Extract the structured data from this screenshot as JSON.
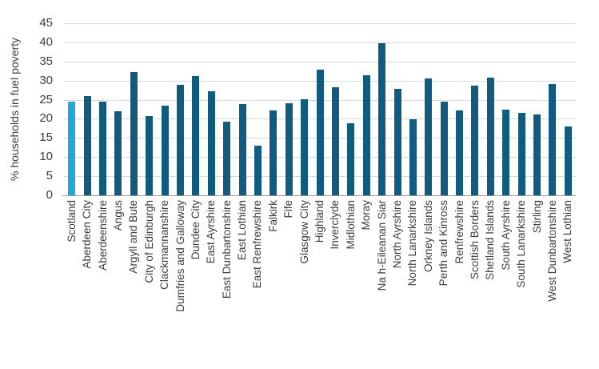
{
  "chart_data": {
    "type": "bar",
    "title": "",
    "ylabel": "% households in fuel poverty",
    "xlabel": "",
    "ylim": [
      0,
      45
    ],
    "yticks": [
      0,
      5,
      10,
      15,
      20,
      25,
      30,
      35,
      40,
      45
    ],
    "grid": true,
    "legend_position": "none",
    "categories": [
      "Scotland",
      "Aberdeen City",
      "Aberdeenshire",
      "Angus",
      "Argyll and Bute",
      "City of Edinburgh",
      "Clackmannanshire",
      "Dumfries and Galloway",
      "Dundee City",
      "East Ayrshire",
      "East Dunbartonshire",
      "East Lothian",
      "East Renfrewshire",
      "Falkirk",
      "Fife",
      "Glasgow City",
      "Highland",
      "Inverclyde",
      "Midlothian",
      "Moray",
      "Na h-Eileanan Siar",
      "North Ayrshire",
      "North Lanarkshire",
      "Orkney Islands",
      "Perth and Kinross",
      "Renfrewshire",
      "Scottish Borders",
      "Shetland Islands",
      "South Ayrshire",
      "South Lanarkshire",
      "Stirling",
      "West Dunbartonshire",
      "West Lothian"
    ],
    "values": [
      24.4,
      26,
      24.5,
      22,
      32.3,
      20.7,
      23.5,
      28.8,
      31.3,
      27.2,
      19.2,
      23.9,
      13,
      22.1,
      24,
      25.1,
      32.8,
      28.3,
      18.9,
      31.4,
      39.7,
      27.8,
      19.9,
      30.6,
      24.5,
      22.2,
      28.6,
      30.8,
      22.4,
      21.6,
      21.1,
      29,
      18.1
    ],
    "highlight_category": "Scotland",
    "colors": {
      "bar": "#115B7E",
      "highlight_bar": "#21A7E0",
      "gridline": "#D9D9D9",
      "axis_line": "#999999",
      "label_text": "#3F3F3F"
    }
  }
}
